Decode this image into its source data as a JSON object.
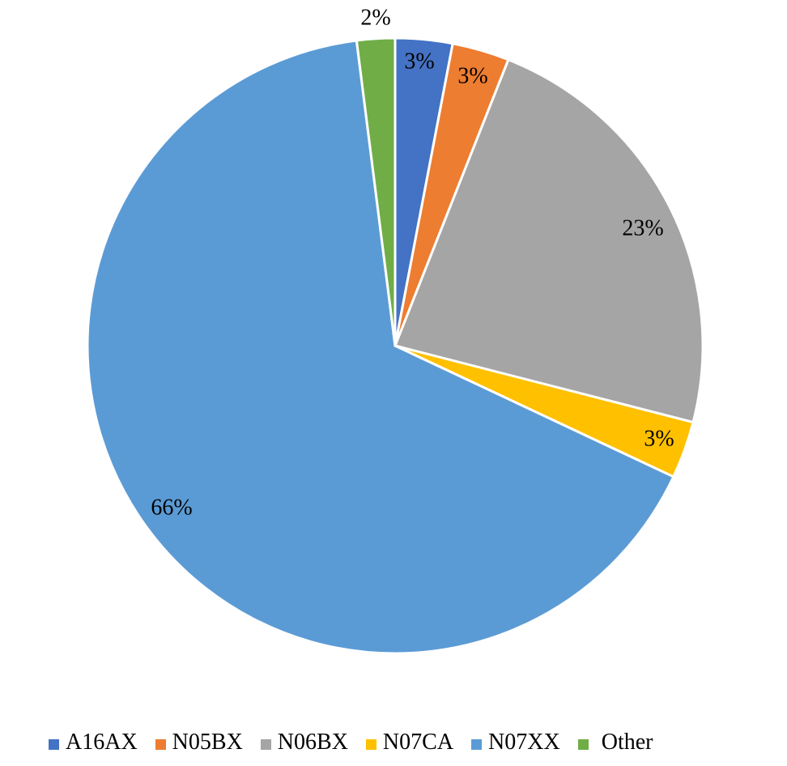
{
  "chart_data": {
    "type": "pie",
    "title": "",
    "legend_position": "bottom",
    "categories": [
      "A16AX",
      "N05BX",
      "N06BX",
      "N07CA",
      "N07XX",
      "Other"
    ],
    "values": [
      3,
      3,
      23,
      3,
      66,
      2
    ],
    "data_labels": [
      "3%",
      "3%",
      "23%",
      "3%",
      "66%",
      "2%"
    ],
    "colors": [
      "#4472C4",
      "#ED7D31",
      "#A5A5A5",
      "#FFC000",
      "#5B9BD5",
      "#70AD47"
    ]
  }
}
